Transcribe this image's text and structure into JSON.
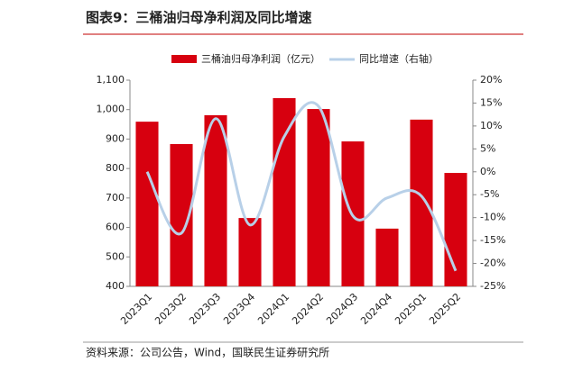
{
  "chart_data": {
    "type": "bar_line",
    "title": "图表9：三桶油归母净利润及同比增速",
    "source": "资料来源：公司公告，Wind，国联民生证券研究所",
    "categories": [
      "2023Q1",
      "2023Q2",
      "2023Q3",
      "2023Q4",
      "2024Q1",
      "2024Q2",
      "2024Q3",
      "2024Q4",
      "2025Q1",
      "2025Q2"
    ],
    "series": [
      {
        "name": "三桶油归母净利润（亿元）",
        "color": "#d7000f",
        "type": "bar",
        "values": [
          959,
          883,
          981,
          632,
          1039,
          1002,
          892,
          596,
          966,
          785
        ]
      },
      {
        "name": "同比增速（右轴）",
        "color": "#b8d0e8",
        "type": "line",
        "axis": "y2",
        "values": [
          0,
          -13.4,
          11.6,
          -11.6,
          7.7,
          14.3,
          -9.6,
          -5.7,
          -5.3,
          -21.6
        ]
      }
    ],
    "ylim": [
      400,
      1100
    ],
    "yticks": [
      400,
      500,
      600,
      700,
      800,
      900,
      {
        "value": 1000,
        "label": "1,000"
      },
      {
        "value": 1100,
        "label": "1,100"
      }
    ],
    "y2lim": [
      -25,
      20
    ],
    "y2ticks": [
      {
        "value": -25,
        "label": "-25%"
      },
      {
        "value": -20,
        "label": "-20%"
      },
      {
        "value": -15,
        "label": "-15%"
      },
      {
        "value": -10,
        "label": "-10%"
      },
      {
        "value": -5,
        "label": "-5%"
      },
      {
        "value": 0,
        "label": "0%"
      },
      {
        "value": 5,
        "label": "5%"
      },
      {
        "value": 10,
        "label": "10%"
      },
      {
        "value": 15,
        "label": "15%"
      },
      {
        "value": 20,
        "label": "20%"
      }
    ]
  }
}
